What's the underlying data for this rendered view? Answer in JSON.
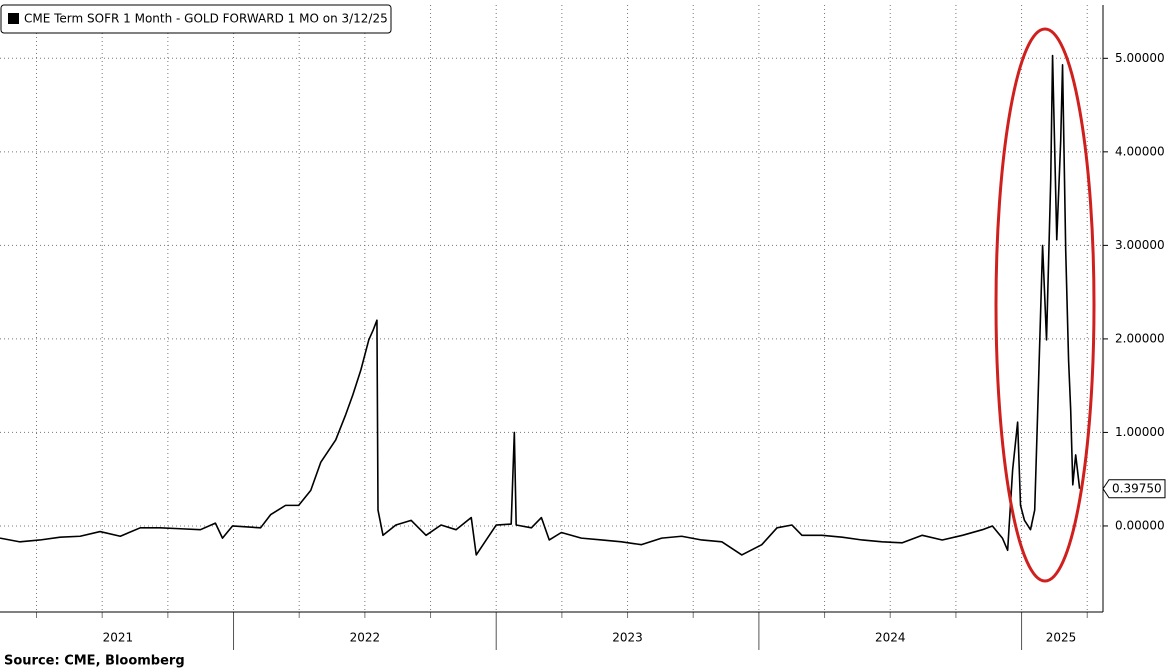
{
  "chart_data": {
    "type": "line",
    "source": "Source: CME, Bloomberg",
    "x": [
      2021.111,
      2021.187,
      2021.263,
      2021.34,
      2021.416,
      2021.492,
      2021.569,
      2021.645,
      2021.721,
      2021.798,
      2021.874,
      2021.931,
      2021.958,
      2021.996,
      2022.103,
      2022.141,
      2022.198,
      2022.248,
      2022.294,
      2022.332,
      2022.389,
      2022.427,
      2022.454,
      2022.485,
      2022.515,
      2022.531,
      2022.546,
      2022.55,
      2022.569,
      2022.618,
      2022.676,
      2022.733,
      2022.79,
      2022.847,
      2022.905,
      2022.924,
      2022.962,
      2023.0,
      2023.057,
      2023.069,
      2023.076,
      2023.134,
      2023.172,
      2023.202,
      2023.248,
      2023.324,
      2023.401,
      2023.477,
      2023.553,
      2023.63,
      2023.706,
      2023.782,
      2023.859,
      2023.935,
      2024.011,
      2024.069,
      2024.126,
      2024.164,
      2024.24,
      2024.317,
      2024.393,
      2024.469,
      2024.546,
      2024.622,
      2024.698,
      2024.775,
      2024.851,
      2024.889,
      2024.927,
      2024.947,
      2024.966,
      2024.985,
      2024.996,
      2025.011,
      2025.034,
      2025.05,
      2025.061,
      2025.08,
      2025.095,
      2025.111,
      2025.118,
      2025.134,
      2025.149,
      2025.156,
      2025.168,
      2025.179,
      2025.187,
      2025.195,
      2025.206,
      2025.221
    ],
    "series": [
      {
        "name": "CME Term SOFR 1 Month - GOLD FORWARD 1 MO on 3/12/25",
        "color": "#000000",
        "values": [
          -0.13,
          -0.17,
          -0.15,
          -0.12,
          -0.11,
          -0.06,
          -0.11,
          -0.02,
          -0.02,
          -0.03,
          -0.04,
          0.03,
          -0.13,
          0.0,
          -0.02,
          0.12,
          0.22,
          0.22,
          0.38,
          0.68,
          0.92,
          1.19,
          1.4,
          1.67,
          1.99,
          2.09,
          2.2,
          0.17,
          -0.1,
          0.01,
          0.06,
          -0.1,
          0.01,
          -0.04,
          0.09,
          -0.31,
          -0.15,
          0.01,
          0.02,
          1.0,
          0.01,
          -0.02,
          0.09,
          -0.15,
          -0.07,
          -0.13,
          -0.15,
          -0.17,
          -0.2,
          -0.13,
          -0.11,
          -0.15,
          -0.17,
          -0.31,
          -0.2,
          -0.02,
          0.01,
          -0.1,
          -0.1,
          -0.12,
          -0.15,
          -0.17,
          -0.18,
          -0.1,
          -0.15,
          -0.1,
          -0.04,
          0.0,
          -0.13,
          -0.26,
          0.6,
          1.11,
          0.22,
          0.06,
          -0.04,
          0.17,
          1.19,
          3.0,
          1.99,
          3.7,
          5.03,
          3.06,
          4.12,
          4.93,
          2.95,
          1.77,
          1.24,
          0.44,
          0.76,
          0.3975
        ]
      }
    ],
    "last_value": {
      "value": 0.3975,
      "label": "0.39750"
    },
    "xlim": [
      2021.111,
      2025.31
    ],
    "xticks": [
      {
        "value": 2021.56,
        "label": "2021"
      },
      {
        "value": 2022.5,
        "label": "2022"
      },
      {
        "value": 2023.5,
        "label": "2023"
      },
      {
        "value": 2024.5,
        "label": "2024"
      },
      {
        "value": 2025.15,
        "label": "2025"
      }
    ],
    "xgrid": [
      2021.25,
      2021.5,
      2021.75,
      2022,
      2022.25,
      2022.5,
      2022.75,
      2023,
      2023.25,
      2023.5,
      2023.75,
      2024,
      2024.25,
      2024.5,
      2024.75,
      2025,
      2025.25
    ],
    "ylim": [
      -0.92,
      5.57
    ],
    "yticks": [
      {
        "value": 0,
        "label": "0.00000"
      },
      {
        "value": 1,
        "label": "1.00000"
      },
      {
        "value": 2,
        "label": "2.00000"
      },
      {
        "value": 3,
        "label": "3.00000"
      },
      {
        "value": 4,
        "label": "4.00000"
      },
      {
        "value": 5,
        "label": "5.00000"
      }
    ],
    "grid": true
  }
}
